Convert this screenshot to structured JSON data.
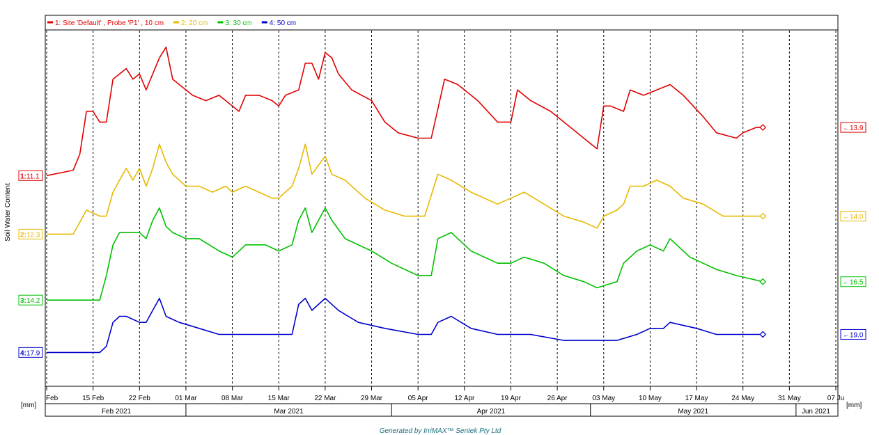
{
  "footer": "Generated by IrriMAX™ Sentek Pty Ltd",
  "chart_data": {
    "type": "line",
    "ylabel": "Soil Water Content",
    "unit_left": "[mm]",
    "unit_right": "[mm]",
    "grid": true,
    "legend": "top",
    "x_tick_labels": [
      "Feb",
      "15 Feb",
      "22 Feb",
      "01 Mar",
      "08 Mar",
      "15 Mar",
      "22 Mar",
      "29 Mar",
      "05 Apr",
      "12 Apr",
      "19 Apr",
      "26 Apr",
      "03 May",
      "10 May",
      "17 May",
      "24 May",
      "31 May",
      "07 Ju"
    ],
    "x_tick_dates": [
      "2021-02-08",
      "2021-02-15",
      "2021-02-22",
      "2021-03-01",
      "2021-03-08",
      "2021-03-15",
      "2021-03-22",
      "2021-03-29",
      "2021-04-05",
      "2021-04-12",
      "2021-04-19",
      "2021-04-26",
      "2021-05-03",
      "2021-05-10",
      "2021-05-17",
      "2021-05-24",
      "2021-05-31",
      "2021-06-07"
    ],
    "months": [
      {
        "label": "Feb 2021",
        "start": "2021-02-08",
        "end": "2021-03-01"
      },
      {
        "label": "Mar 2021",
        "start": "2021-03-01",
        "end": "2021-04-01"
      },
      {
        "label": "Apr 2021",
        "start": "2021-04-01",
        "end": "2021-05-01"
      },
      {
        "label": "May 2021",
        "start": "2021-05-01",
        "end": "2021-06-01"
      },
      {
        "label": "Jun 2021",
        "start": "2021-06-01",
        "end": "2021-06-07"
      }
    ],
    "xlim": [
      "2021-02-08",
      "2021-06-07"
    ],
    "series": [
      {
        "name": "1: Site 'Default' , Probe 'P1' , 10 cm",
        "color": "#e00000",
        "start_value": "11.1",
        "start_index": "1:",
        "end_value": "13.9",
        "points": [
          [
            "2021-02-08",
            11.1
          ],
          [
            "2021-02-12",
            11.2
          ],
          [
            "2021-02-13",
            11.5
          ],
          [
            "2021-02-14",
            12.3
          ],
          [
            "2021-02-15",
            12.3
          ],
          [
            "2021-02-16",
            12.1
          ],
          [
            "2021-02-17",
            12.1
          ],
          [
            "2021-02-18",
            12.9
          ],
          [
            "2021-02-19",
            13.0
          ],
          [
            "2021-02-20",
            13.1
          ],
          [
            "2021-02-21",
            12.9
          ],
          [
            "2021-02-22",
            13.0
          ],
          [
            "2021-02-23",
            12.7
          ],
          [
            "2021-02-24",
            13.0
          ],
          [
            "2021-02-25",
            13.3
          ],
          [
            "2021-02-26",
            13.5
          ],
          [
            "2021-02-27",
            12.9
          ],
          [
            "2021-02-28",
            12.8
          ],
          [
            "2021-03-02",
            12.6
          ],
          [
            "2021-03-04",
            12.5
          ],
          [
            "2021-03-06",
            12.6
          ],
          [
            "2021-03-08",
            12.4
          ],
          [
            "2021-03-09",
            12.3
          ],
          [
            "2021-03-10",
            12.6
          ],
          [
            "2021-03-12",
            12.6
          ],
          [
            "2021-03-14",
            12.5
          ],
          [
            "2021-03-15",
            12.4
          ],
          [
            "2021-03-16",
            12.6
          ],
          [
            "2021-03-18",
            12.7
          ],
          [
            "2021-03-19",
            13.2
          ],
          [
            "2021-03-20",
            13.2
          ],
          [
            "2021-03-21",
            12.9
          ],
          [
            "2021-03-22",
            13.4
          ],
          [
            "2021-03-23",
            13.3
          ],
          [
            "2021-03-24",
            13.0
          ],
          [
            "2021-03-26",
            12.7
          ],
          [
            "2021-03-29",
            12.5
          ],
          [
            "2021-03-31",
            12.1
          ],
          [
            "2021-04-02",
            11.9
          ],
          [
            "2021-04-05",
            11.8
          ],
          [
            "2021-04-07",
            11.8
          ],
          [
            "2021-04-09",
            12.9
          ],
          [
            "2021-04-11",
            12.8
          ],
          [
            "2021-04-14",
            12.5
          ],
          [
            "2021-04-17",
            12.1
          ],
          [
            "2021-04-19",
            12.1
          ],
          [
            "2021-04-20",
            12.7
          ],
          [
            "2021-04-22",
            12.5
          ],
          [
            "2021-04-25",
            12.3
          ],
          [
            "2021-04-28",
            12.0
          ],
          [
            "2021-05-01",
            11.7
          ],
          [
            "2021-05-02",
            11.6
          ],
          [
            "2021-05-03",
            12.4
          ],
          [
            "2021-05-04",
            12.4
          ],
          [
            "2021-05-06",
            12.3
          ],
          [
            "2021-05-07",
            12.7
          ],
          [
            "2021-05-09",
            12.6
          ],
          [
            "2021-05-11",
            12.7
          ],
          [
            "2021-05-13",
            12.8
          ],
          [
            "2021-05-15",
            12.6
          ],
          [
            "2021-05-18",
            12.2
          ],
          [
            "2021-05-20",
            11.9
          ],
          [
            "2021-05-23",
            11.8
          ],
          [
            "2021-05-24",
            11.9
          ],
          [
            "2021-05-26",
            12.0
          ],
          [
            "2021-05-27",
            12.0
          ]
        ]
      },
      {
        "name": "2: 20 cm",
        "color": "#e8b800",
        "start_value": "12.3",
        "start_index": "2:",
        "end_value": "14.0",
        "points": [
          [
            "2021-02-08",
            12.3
          ],
          [
            "2021-02-12",
            12.3
          ],
          [
            "2021-02-13",
            12.5
          ],
          [
            "2021-02-14",
            12.7
          ],
          [
            "2021-02-16",
            12.6
          ],
          [
            "2021-02-17",
            12.6
          ],
          [
            "2021-02-18",
            13.0
          ],
          [
            "2021-02-19",
            13.2
          ],
          [
            "2021-02-20",
            13.4
          ],
          [
            "2021-02-21",
            13.2
          ],
          [
            "2021-02-22",
            13.4
          ],
          [
            "2021-02-23",
            13.1
          ],
          [
            "2021-02-24",
            13.4
          ],
          [
            "2021-02-25",
            13.8
          ],
          [
            "2021-02-26",
            13.5
          ],
          [
            "2021-02-27",
            13.3
          ],
          [
            "2021-03-01",
            13.1
          ],
          [
            "2021-03-03",
            13.1
          ],
          [
            "2021-03-05",
            13.0
          ],
          [
            "2021-03-07",
            13.1
          ],
          [
            "2021-03-08",
            13.0
          ],
          [
            "2021-03-10",
            13.1
          ],
          [
            "2021-03-12",
            13.0
          ],
          [
            "2021-03-14",
            12.9
          ],
          [
            "2021-03-15",
            12.9
          ],
          [
            "2021-03-17",
            13.1
          ],
          [
            "2021-03-18",
            13.4
          ],
          [
            "2021-03-19",
            13.8
          ],
          [
            "2021-03-20",
            13.3
          ],
          [
            "2021-03-22",
            13.6
          ],
          [
            "2021-03-23",
            13.3
          ],
          [
            "2021-03-25",
            13.2
          ],
          [
            "2021-03-28",
            12.9
          ],
          [
            "2021-03-31",
            12.7
          ],
          [
            "2021-04-03",
            12.6
          ],
          [
            "2021-04-06",
            12.6
          ],
          [
            "2021-04-08",
            13.3
          ],
          [
            "2021-04-10",
            13.2
          ],
          [
            "2021-04-13",
            13.0
          ],
          [
            "2021-04-17",
            12.8
          ],
          [
            "2021-04-19",
            12.9
          ],
          [
            "2021-04-21",
            13.0
          ],
          [
            "2021-04-24",
            12.8
          ],
          [
            "2021-04-27",
            12.6
          ],
          [
            "2021-04-30",
            12.5
          ],
          [
            "2021-05-02",
            12.4
          ],
          [
            "2021-05-03",
            12.6
          ],
          [
            "2021-05-05",
            12.7
          ],
          [
            "2021-05-06",
            12.8
          ],
          [
            "2021-05-07",
            13.1
          ],
          [
            "2021-05-09",
            13.1
          ],
          [
            "2021-05-11",
            13.2
          ],
          [
            "2021-05-13",
            13.1
          ],
          [
            "2021-05-15",
            12.9
          ],
          [
            "2021-05-18",
            12.8
          ],
          [
            "2021-05-21",
            12.6
          ],
          [
            "2021-05-24",
            12.6
          ],
          [
            "2021-05-27",
            12.6
          ]
        ]
      },
      {
        "name": "3: 30 cm",
        "color": "#00c000",
        "start_value": "14.2",
        "start_index": "3:",
        "end_value": "16.5",
        "points": [
          [
            "2021-02-08",
            14.2
          ],
          [
            "2021-02-12",
            14.2
          ],
          [
            "2021-02-16",
            14.2
          ],
          [
            "2021-02-17",
            14.6
          ],
          [
            "2021-02-18",
            15.1
          ],
          [
            "2021-02-19",
            15.3
          ],
          [
            "2021-02-20",
            15.3
          ],
          [
            "2021-02-22",
            15.3
          ],
          [
            "2021-02-23",
            15.2
          ],
          [
            "2021-02-24",
            15.5
          ],
          [
            "2021-02-25",
            15.7
          ],
          [
            "2021-02-26",
            15.4
          ],
          [
            "2021-02-27",
            15.3
          ],
          [
            "2021-03-01",
            15.2
          ],
          [
            "2021-03-03",
            15.2
          ],
          [
            "2021-03-06",
            15.0
          ],
          [
            "2021-03-08",
            14.9
          ],
          [
            "2021-03-10",
            15.1
          ],
          [
            "2021-03-13",
            15.1
          ],
          [
            "2021-03-15",
            15.0
          ],
          [
            "2021-03-17",
            15.1
          ],
          [
            "2021-03-18",
            15.5
          ],
          [
            "2021-03-19",
            15.7
          ],
          [
            "2021-03-20",
            15.3
          ],
          [
            "2021-03-22",
            15.7
          ],
          [
            "2021-03-23",
            15.5
          ],
          [
            "2021-03-25",
            15.2
          ],
          [
            "2021-03-29",
            15.0
          ],
          [
            "2021-04-01",
            14.8
          ],
          [
            "2021-04-05",
            14.6
          ],
          [
            "2021-04-07",
            14.6
          ],
          [
            "2021-04-08",
            15.2
          ],
          [
            "2021-04-10",
            15.3
          ],
          [
            "2021-04-13",
            15.0
          ],
          [
            "2021-04-17",
            14.8
          ],
          [
            "2021-04-19",
            14.8
          ],
          [
            "2021-04-21",
            14.9
          ],
          [
            "2021-04-24",
            14.8
          ],
          [
            "2021-04-27",
            14.6
          ],
          [
            "2021-04-30",
            14.5
          ],
          [
            "2021-05-02",
            14.4
          ],
          [
            "2021-05-05",
            14.5
          ],
          [
            "2021-05-06",
            14.8
          ],
          [
            "2021-05-08",
            15.0
          ],
          [
            "2021-05-10",
            15.1
          ],
          [
            "2021-05-12",
            15.0
          ],
          [
            "2021-05-13",
            15.2
          ],
          [
            "2021-05-16",
            14.9
          ],
          [
            "2021-05-20",
            14.7
          ],
          [
            "2021-05-23",
            14.6
          ],
          [
            "2021-05-27",
            14.5
          ]
        ]
      },
      {
        "name": "4: 50 cm",
        "color": "#0000cc",
        "start_value": "17.9",
        "start_index": "4:",
        "end_value": "19.0",
        "points": [
          [
            "2021-02-08",
            17.9
          ],
          [
            "2021-02-12",
            17.9
          ],
          [
            "2021-02-16",
            17.9
          ],
          [
            "2021-02-17",
            18.0
          ],
          [
            "2021-02-18",
            18.4
          ],
          [
            "2021-02-19",
            18.5
          ],
          [
            "2021-02-20",
            18.5
          ],
          [
            "2021-02-22",
            18.4
          ],
          [
            "2021-02-23",
            18.4
          ],
          [
            "2021-02-24",
            18.6
          ],
          [
            "2021-02-25",
            18.8
          ],
          [
            "2021-02-26",
            18.5
          ],
          [
            "2021-02-28",
            18.4
          ],
          [
            "2021-03-03",
            18.3
          ],
          [
            "2021-03-06",
            18.2
          ],
          [
            "2021-03-09",
            18.2
          ],
          [
            "2021-03-14",
            18.2
          ],
          [
            "2021-03-17",
            18.2
          ],
          [
            "2021-03-18",
            18.7
          ],
          [
            "2021-03-19",
            18.8
          ],
          [
            "2021-03-20",
            18.6
          ],
          [
            "2021-03-22",
            18.8
          ],
          [
            "2021-03-23",
            18.7
          ],
          [
            "2021-03-24",
            18.6
          ],
          [
            "2021-03-27",
            18.4
          ],
          [
            "2021-03-31",
            18.3
          ],
          [
            "2021-04-05",
            18.2
          ],
          [
            "2021-04-07",
            18.2
          ],
          [
            "2021-04-08",
            18.4
          ],
          [
            "2021-04-10",
            18.5
          ],
          [
            "2021-04-13",
            18.3
          ],
          [
            "2021-04-17",
            18.2
          ],
          [
            "2021-04-22",
            18.2
          ],
          [
            "2021-04-27",
            18.1
          ],
          [
            "2021-05-01",
            18.1
          ],
          [
            "2021-05-05",
            18.1
          ],
          [
            "2021-05-08",
            18.2
          ],
          [
            "2021-05-10",
            18.3
          ],
          [
            "2021-05-12",
            18.3
          ],
          [
            "2021-05-13",
            18.4
          ],
          [
            "2021-05-17",
            18.3
          ],
          [
            "2021-05-20",
            18.2
          ],
          [
            "2021-05-24",
            18.2
          ],
          [
            "2021-05-27",
            18.2
          ]
        ]
      }
    ]
  }
}
